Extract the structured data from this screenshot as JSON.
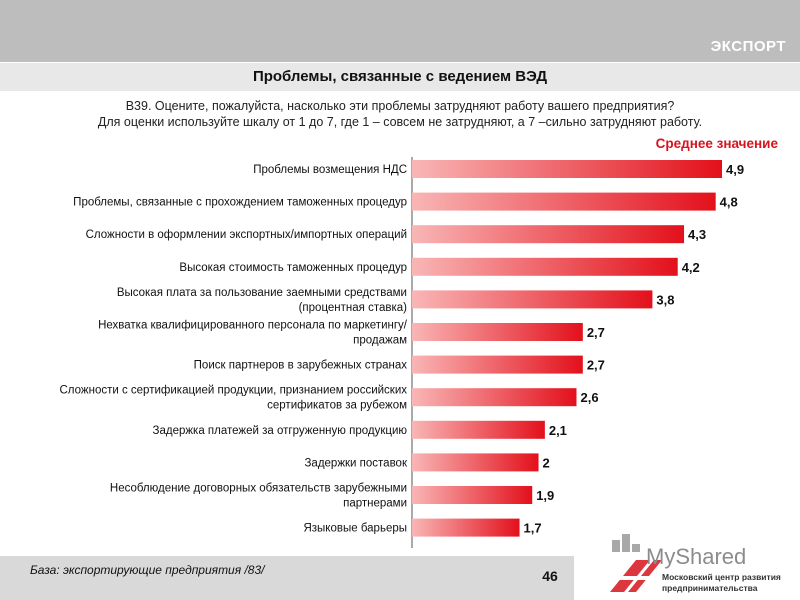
{
  "header": {
    "section_label": "ЭКСПОРТ",
    "title": "Проблемы, связанные с ведением ВЭД"
  },
  "question": {
    "line1": "В39. Оцените, пожалуйста, насколько эти проблемы затрудняют работу вашего предприятия?",
    "line2": "Для оценки используйте шкалу от 1 до 7, где 1 – совсем не затрудняют, а 7 –сильно затрудняют работу."
  },
  "colors": {
    "bar_light": "#f9b6b6",
    "bar_dark": "#e3101b",
    "accent_red": "#d6141e",
    "band_gray": "#bdbdbd"
  },
  "chart_data": {
    "type": "bar",
    "orientation": "horizontal",
    "title": "Проблемы, связанные с ведением ВЭД",
    "legend": "Среднее значение",
    "categories": [
      [
        "Проблемы возмещения НДС"
      ],
      [
        "Проблемы, связанные с прохождением таможенных процедур"
      ],
      [
        "Сложности в оформлении экспортных/импортных операций"
      ],
      [
        "Высокая стоимость таможенных процедур"
      ],
      [
        "Высокая плата за пользование заемными средствами",
        "(процентная ставка)"
      ],
      [
        "Нехватка квалифицированного персонала по маркетингу/",
        "продажам"
      ],
      [
        "Поиск партнеров в зарубежных странах"
      ],
      [
        "Сложности с сертификацией продукции, признанием российских",
        "сертификатов за рубежом"
      ],
      [
        "Задержка платежей за отгруженную продукцию"
      ],
      [
        "Задержки поставок"
      ],
      [
        "Несоблюдение договорных обязательств зарубежными",
        "партнерами"
      ],
      [
        "Языковые барьеры"
      ]
    ],
    "values": [
      4.9,
      4.8,
      4.3,
      4.2,
      3.8,
      2.7,
      2.7,
      2.6,
      2.1,
      2,
      1.9,
      1.7
    ],
    "value_labels": [
      "4,9",
      "4,8",
      "4,3",
      "4,2",
      "3,8",
      "2,7",
      "2,7",
      "2,6",
      "2,1",
      "2",
      "1,9",
      "1,7"
    ],
    "xlim": [
      0,
      4.9
    ],
    "grid": false
  },
  "footer": {
    "base_note": "База: экспортирующие предприятия /83/",
    "page_number": "46"
  },
  "watermark": {
    "brand": "MyShared",
    "org_line1": "Московский центр развития",
    "org_line2": "предпринимательства"
  }
}
